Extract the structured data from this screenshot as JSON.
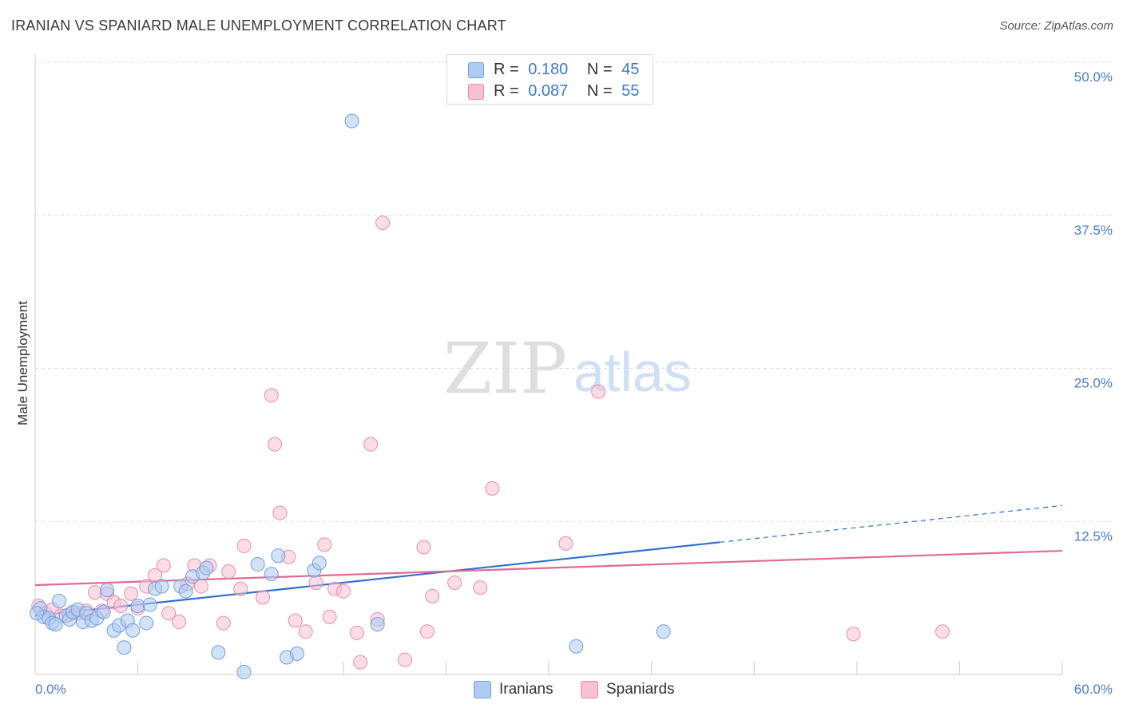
{
  "title": "IRANIAN VS SPANIARD MALE UNEMPLOYMENT CORRELATION CHART",
  "source": "Source: ZipAtlas.com",
  "watermark": {
    "zip": "ZIP",
    "atlas": "atlas"
  },
  "legend_top": [
    {
      "r_label": "R =",
      "r_value": "0.180",
      "n_label": "N =",
      "n_value": "45"
    },
    {
      "r_label": "R =",
      "r_value": "0.087",
      "n_label": "N =",
      "n_value": "55"
    }
  ],
  "colors": {
    "iranians_fill": "#aecbf1",
    "iranians_stroke": "#6f9fdc",
    "iranians_line": "#2f6fcf",
    "spaniards_fill": "#f7c1d3",
    "spaniards_stroke": "#e98bab",
    "spaniards_line": "#e26a96",
    "grid": "#dddddd",
    "tick_text": "#4a7cc7"
  },
  "chart_data": {
    "type": "scatter",
    "title": "IRANIAN VS SPANIARD MALE UNEMPLOYMENT CORRELATION CHART",
    "xlabel": "",
    "ylabel": "Male Unemployment",
    "xlim": [
      0,
      60
    ],
    "ylim": [
      0,
      50
    ],
    "x_tick_labels": [
      "0.0%",
      "60.0%"
    ],
    "y_ticks": [
      12.5,
      25.0,
      37.5,
      50.0
    ],
    "y_tick_labels": [
      "12.5%",
      "25.0%",
      "37.5%",
      "50.0%"
    ],
    "legend": [
      "Iranians",
      "Spaniards"
    ],
    "series": [
      {
        "name": "Iranians",
        "r": 0.18,
        "n": 45,
        "trend": {
          "x0": 0,
          "y0": 4.8,
          "x1": 40,
          "y1": 10.8,
          "dash_x1": 60,
          "dash_y1": 13.8
        },
        "points": [
          [
            0.3,
            5.4
          ],
          [
            0.5,
            4.7
          ],
          [
            0.8,
            4.6
          ],
          [
            1.0,
            4.2
          ],
          [
            1.2,
            4.1
          ],
          [
            1.4,
            6.0
          ],
          [
            1.8,
            4.8
          ],
          [
            2.0,
            4.5
          ],
          [
            2.2,
            5.1
          ],
          [
            2.5,
            5.3
          ],
          [
            2.8,
            4.3
          ],
          [
            3.0,
            5.0
          ],
          [
            3.3,
            4.4
          ],
          [
            3.6,
            4.6
          ],
          [
            4.0,
            5.1
          ],
          [
            4.2,
            6.9
          ],
          [
            4.6,
            3.6
          ],
          [
            4.9,
            4.0
          ],
          [
            5.2,
            2.2
          ],
          [
            5.4,
            4.4
          ],
          [
            5.7,
            3.6
          ],
          [
            6.0,
            5.6
          ],
          [
            6.5,
            4.2
          ],
          [
            6.7,
            5.7
          ],
          [
            7.0,
            7.0
          ],
          [
            7.4,
            7.2
          ],
          [
            8.5,
            7.2
          ],
          [
            8.8,
            6.8
          ],
          [
            9.2,
            8.0
          ],
          [
            9.8,
            8.3
          ],
          [
            10.0,
            8.7
          ],
          [
            10.7,
            1.8
          ],
          [
            12.2,
            0.2
          ],
          [
            13.0,
            9.0
          ],
          [
            13.8,
            8.2
          ],
          [
            14.2,
            9.7
          ],
          [
            14.7,
            1.4
          ],
          [
            15.3,
            1.7
          ],
          [
            16.3,
            8.5
          ],
          [
            16.6,
            9.1
          ],
          [
            18.5,
            45.2
          ],
          [
            20.0,
            4.1
          ],
          [
            31.6,
            2.3
          ],
          [
            36.7,
            3.5
          ],
          [
            0.1,
            5.0
          ]
        ]
      },
      {
        "name": "Spaniards",
        "r": 0.087,
        "n": 55,
        "trend": {
          "x0": 0,
          "y0": 7.3,
          "x1": 60,
          "y1": 10.1
        },
        "points": [
          [
            0.2,
            5.6
          ],
          [
            0.6,
            5.0
          ],
          [
            1.0,
            5.3
          ],
          [
            1.5,
            4.8
          ],
          [
            2.0,
            4.9
          ],
          [
            2.5,
            5.0
          ],
          [
            3.0,
            5.2
          ],
          [
            3.5,
            6.7
          ],
          [
            3.9,
            5.2
          ],
          [
            4.2,
            6.6
          ],
          [
            4.6,
            5.9
          ],
          [
            5.0,
            5.6
          ],
          [
            5.6,
            6.6
          ],
          [
            6.0,
            5.4
          ],
          [
            6.5,
            7.2
          ],
          [
            7.0,
            8.1
          ],
          [
            7.5,
            8.9
          ],
          [
            7.8,
            5.0
          ],
          [
            8.4,
            4.3
          ],
          [
            8.9,
            7.4
          ],
          [
            9.3,
            8.9
          ],
          [
            9.7,
            7.2
          ],
          [
            10.2,
            8.9
          ],
          [
            11.0,
            4.2
          ],
          [
            11.3,
            8.4
          ],
          [
            12.0,
            7.0
          ],
          [
            12.2,
            10.5
          ],
          [
            13.3,
            6.3
          ],
          [
            13.8,
            22.8
          ],
          [
            14.0,
            18.8
          ],
          [
            14.3,
            13.2
          ],
          [
            14.8,
            9.6
          ],
          [
            15.2,
            4.4
          ],
          [
            15.8,
            3.5
          ],
          [
            16.4,
            7.5
          ],
          [
            16.9,
            10.6
          ],
          [
            17.2,
            4.7
          ],
          [
            17.5,
            7.0
          ],
          [
            18.0,
            6.8
          ],
          [
            18.8,
            3.4
          ],
          [
            19.0,
            1.0
          ],
          [
            19.6,
            18.8
          ],
          [
            20.0,
            4.5
          ],
          [
            20.3,
            36.9
          ],
          [
            21.6,
            1.2
          ],
          [
            22.7,
            10.4
          ],
          [
            22.9,
            3.5
          ],
          [
            23.2,
            6.4
          ],
          [
            24.5,
            7.5
          ],
          [
            26.0,
            7.1
          ],
          [
            26.7,
            15.2
          ],
          [
            31.0,
            10.7
          ],
          [
            32.9,
            23.1
          ],
          [
            47.8,
            3.3
          ],
          [
            53.0,
            3.5
          ]
        ]
      }
    ]
  }
}
